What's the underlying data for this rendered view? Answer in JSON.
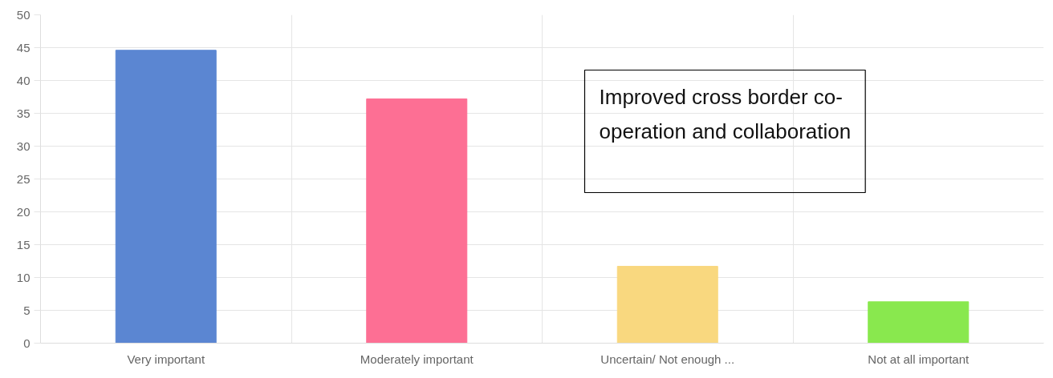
{
  "chart_data": {
    "type": "bar",
    "title": "Improved cross border co-operation and collaboration",
    "categories": [
      "Very important",
      "Moderately important",
      "Uncertain/ Not enough ...",
      "Not at all important"
    ],
    "values": [
      44.6,
      37.2,
      11.7,
      6.3
    ],
    "colors": [
      "#5b86d2",
      "#fd6f94",
      "#f9d87f",
      "#89e84e"
    ],
    "ylim": [
      0,
      50
    ],
    "yticks": [
      0,
      5,
      10,
      15,
      20,
      25,
      30,
      35,
      40,
      45,
      50
    ],
    "grid": true
  }
}
